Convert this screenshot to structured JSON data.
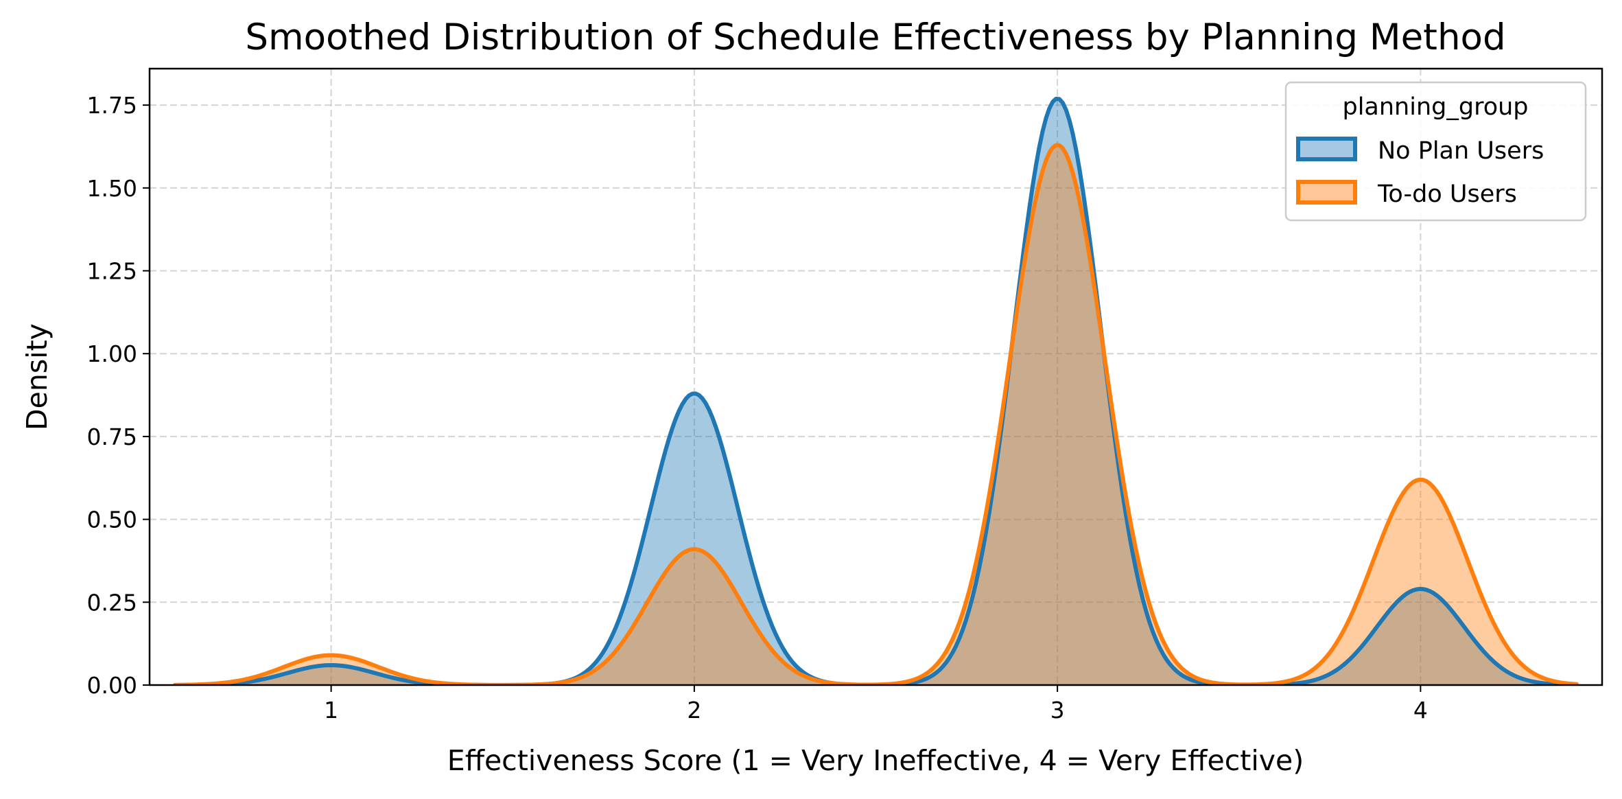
{
  "chart_data": {
    "type": "area",
    "title": "Smoothed Distribution of Schedule Effectiveness by Planning Method",
    "xlabel": "Effectiveness Score (1 = Very Ineffective, 4 = Very Effective)",
    "ylabel": "Density",
    "xlim": [
      0.5,
      4.5
    ],
    "ylim": [
      0,
      1.86
    ],
    "x_ticks": [
      1,
      2,
      3,
      4
    ],
    "x_tick_labels": [
      "1",
      "2",
      "3",
      "4"
    ],
    "y_ticks": [
      0,
      0.25,
      0.5,
      0.75,
      1.0,
      1.25,
      1.5,
      1.75
    ],
    "y_tick_labels": [
      "0.00",
      "0.25",
      "0.50",
      "0.75",
      "1.00",
      "1.25",
      "1.50",
      "1.75"
    ],
    "grid": true,
    "legend": {
      "title": "planning_group",
      "position": "top-right"
    },
    "x_range": [
      0.57,
      4.43
    ],
    "series": [
      {
        "name": "No Plan Users",
        "line_color": "#1f77b4",
        "fill_color": "#a6c8e2",
        "peaks": [
          {
            "x": 1,
            "density": 0.06
          },
          {
            "x": 2,
            "density": 0.88
          },
          {
            "x": 3,
            "density": 1.77
          },
          {
            "x": 4,
            "density": 0.29
          }
        ],
        "bandwidth": 0.12
      },
      {
        "name": "To-do Users",
        "line_color": "#ff7f0e",
        "fill_color": "#ffc697",
        "peaks": [
          {
            "x": 1,
            "density": 0.09
          },
          {
            "x": 2,
            "density": 0.41
          },
          {
            "x": 3,
            "density": 1.63
          },
          {
            "x": 4,
            "density": 0.62
          }
        ],
        "bandwidth": 0.13
      }
    ]
  }
}
